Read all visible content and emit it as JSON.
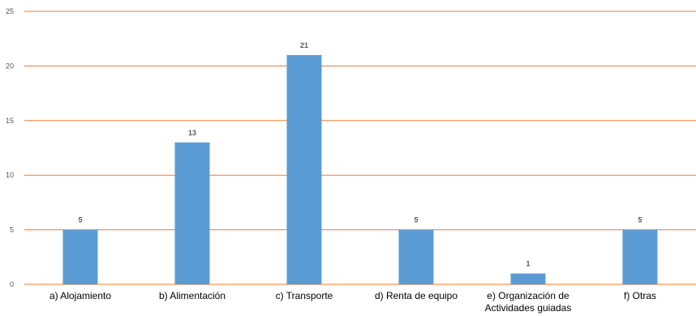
{
  "chart_data": {
    "type": "bar",
    "categories": [
      [
        "a) Alojamiento"
      ],
      [
        "b) Alimentación"
      ],
      [
        "c) Transporte"
      ],
      [
        "d) Renta de equipo"
      ],
      [
        "e) Organización de",
        "Actividades guiadas"
      ],
      [
        "f) Otras"
      ]
    ],
    "values": [
      5,
      13,
      21,
      5,
      1,
      5
    ],
    "data_labels": [
      "5",
      "13",
      "21",
      "5",
      "1",
      "5"
    ],
    "yticks": [
      "0",
      "5",
      "10",
      "15",
      "20",
      "25"
    ],
    "ylim": [
      0,
      25
    ],
    "grid": true,
    "legend": "none",
    "colors": {
      "bar": "#5b9bd5",
      "grid": "#ed7d31",
      "axis": "#ed7d31"
    }
  }
}
